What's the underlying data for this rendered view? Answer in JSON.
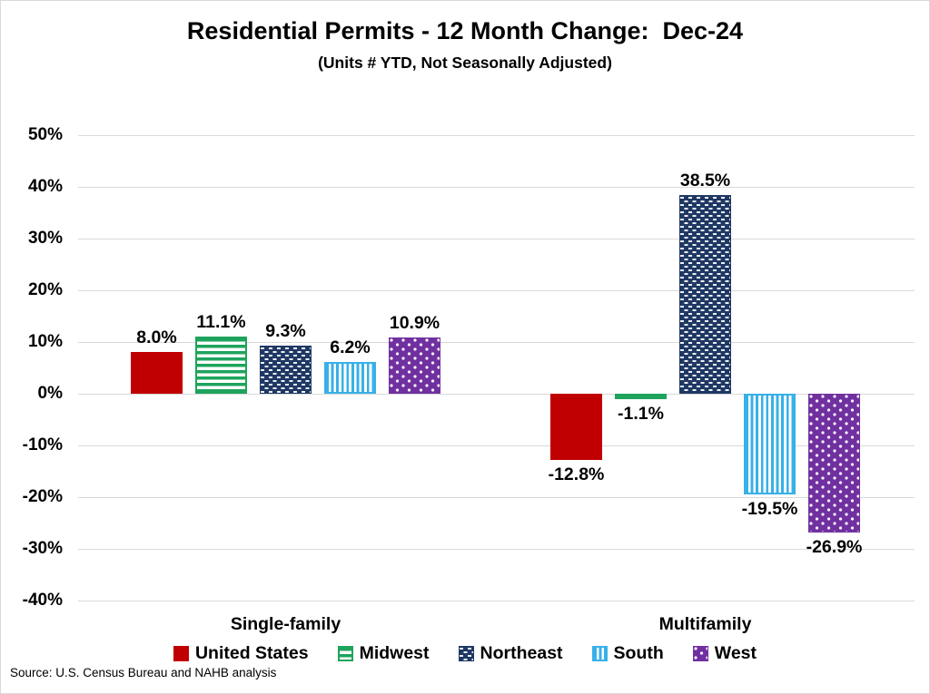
{
  "title": "Residential Permits - 12 Month Change:  Dec-24",
  "subtitle": "(Units # YTD, Not Seasonally Adjusted)",
  "source": "Source: U.S. Census Bureau and NAHB analysis",
  "colors": {
    "united_states": "#C00000",
    "midwest": "#1EA45C",
    "northeast": "#1F3864",
    "south": "#38B0E8",
    "west": "#7030A0",
    "gridline": "#D9D9D9",
    "text": "#000000"
  },
  "chart_data": {
    "type": "bar",
    "title": "Residential Permits - 12 Month Change:  Dec-24",
    "subtitle": "(Units # YTD, Not Seasonally Adjusted)",
    "categories": [
      "Single-family",
      "Multifamily"
    ],
    "series": [
      {
        "name": "United States",
        "pattern": "solid",
        "color": "#C00000",
        "values": [
          8.0,
          -12.8
        ]
      },
      {
        "name": "Midwest",
        "pattern": "h-stripes",
        "color": "#1EA45C",
        "values": [
          11.1,
          -1.1
        ]
      },
      {
        "name": "Northeast",
        "pattern": "weave",
        "color": "#1F3864",
        "values": [
          9.3,
          38.5
        ]
      },
      {
        "name": "South",
        "pattern": "v-stripes",
        "color": "#38B0E8",
        "values": [
          6.2,
          -19.5
        ]
      },
      {
        "name": "West",
        "pattern": "dots",
        "color": "#7030A0",
        "values": [
          10.9,
          -26.9
        ]
      }
    ],
    "data_labels": [
      [
        "8.0%",
        "11.1%",
        "9.3%",
        "6.2%",
        "10.9%"
      ],
      [
        "-12.8%",
        "-1.1%",
        "38.5%",
        "-19.5%",
        "-26.9%"
      ]
    ],
    "y_ticks": [
      "50%",
      "40%",
      "30%",
      "20%",
      "10%",
      "0%",
      "-10%",
      "-20%",
      "-30%",
      "-40%"
    ],
    "ylim": [
      -40,
      50
    ],
    "y_step": 10,
    "grid": true,
    "legend_position": "bottom",
    "xlabel": "",
    "ylabel": ""
  }
}
